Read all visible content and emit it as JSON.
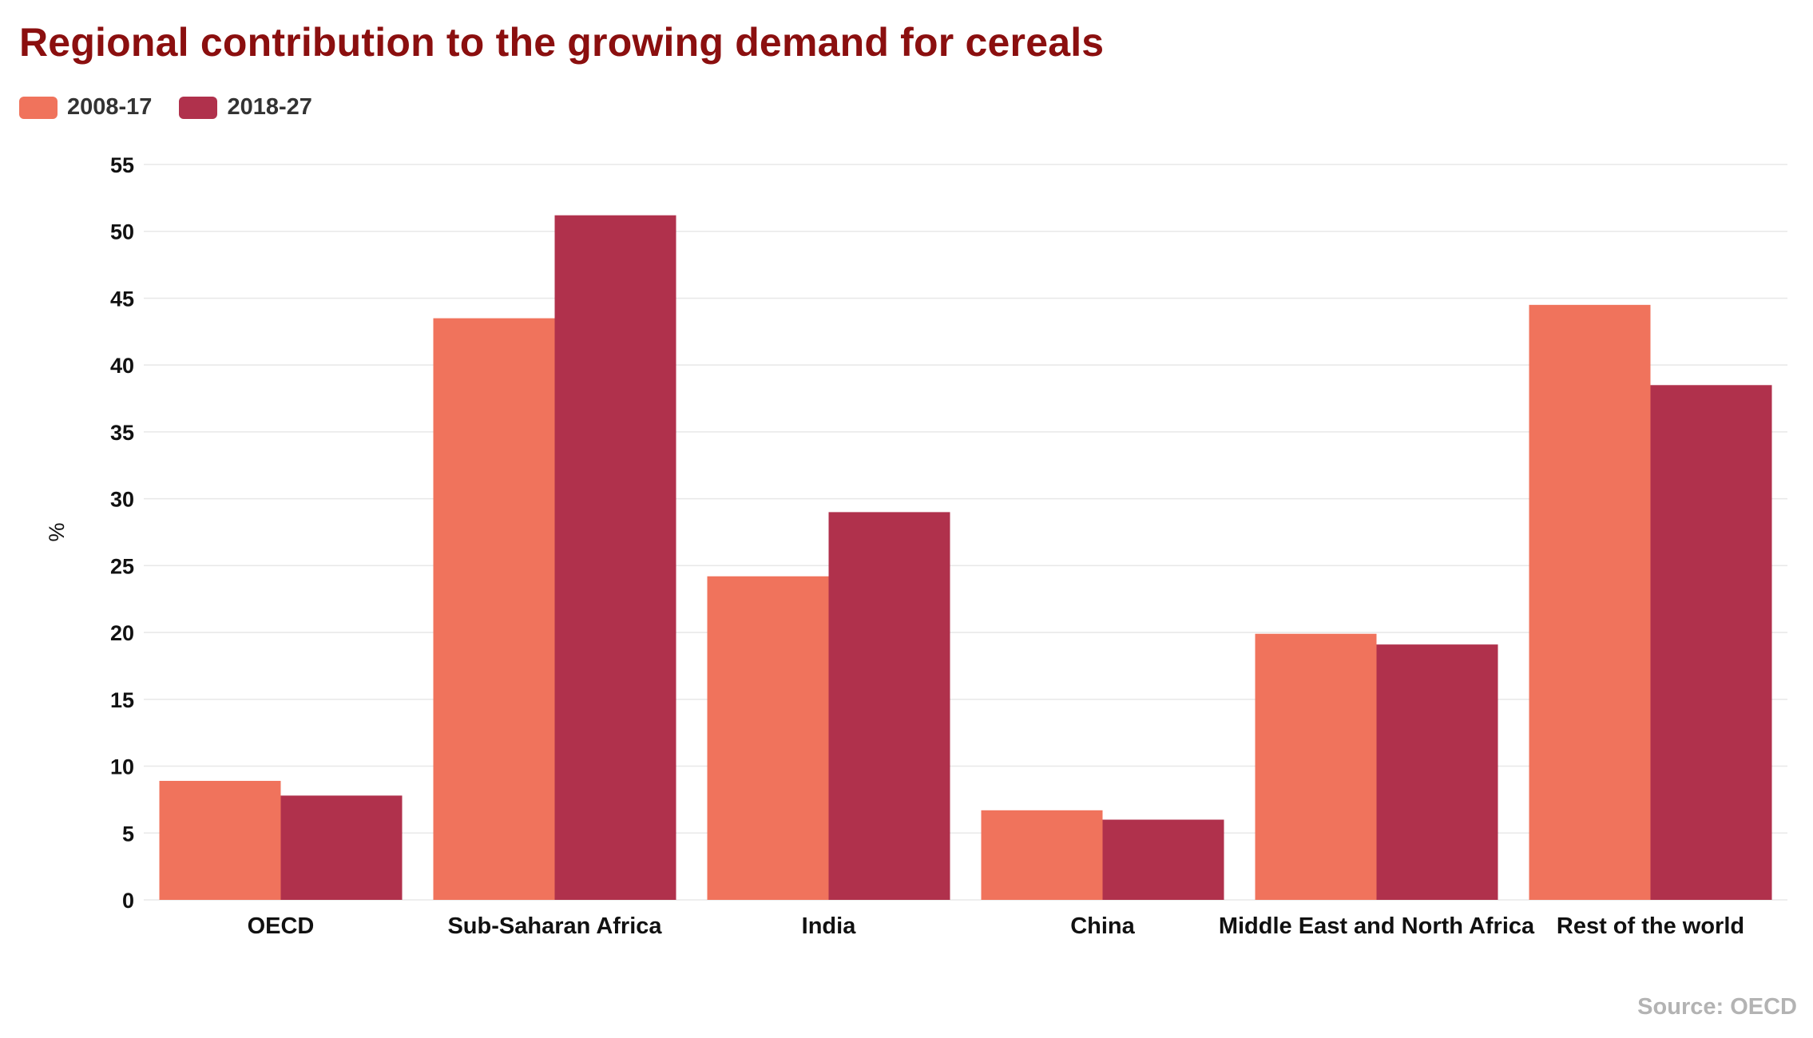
{
  "title": "Regional contribution to the growing demand for cereals",
  "source": "Source: OECD",
  "colors": {
    "series_2008_17": "#f0735c",
    "series_2018_27": "#b0314c",
    "grid": "#e8e8e8",
    "title": "#8b0f0f"
  },
  "legend": [
    {
      "label": "2008-17",
      "color": "#f0735c"
    },
    {
      "label": "2018-27",
      "color": "#b0314c"
    }
  ],
  "chart_data": {
    "type": "bar",
    "title": "Regional contribution to the growing demand for cereals",
    "xlabel": "",
    "ylabel": "%",
    "ylim": [
      0,
      55
    ],
    "yticks": [
      0,
      5,
      10,
      15,
      20,
      25,
      30,
      35,
      40,
      45,
      50,
      55
    ],
    "grid": true,
    "legend_position": "top-left",
    "categories": [
      "OECD",
      "Sub-Saharan Africa",
      "India",
      "China",
      "Middle East and North Africa",
      "Rest of the world"
    ],
    "series": [
      {
        "name": "2008-17",
        "values": [
          8.9,
          43.5,
          24.2,
          6.7,
          19.9,
          44.5
        ]
      },
      {
        "name": "2018-27",
        "values": [
          7.8,
          51.2,
          29.0,
          6.0,
          19.1,
          38.5
        ]
      }
    ]
  }
}
